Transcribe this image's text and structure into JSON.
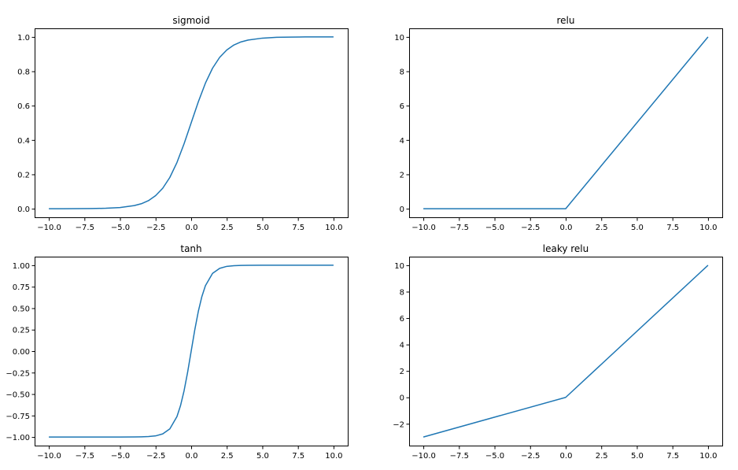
{
  "chart_data": [
    {
      "type": "line",
      "title": "sigmoid",
      "xlabel": "",
      "ylabel": "",
      "xlim": [
        -11,
        11
      ],
      "ylim": [
        -0.05,
        1.05
      ],
      "xticks": [
        -10.0,
        -7.5,
        -5.0,
        -2.5,
        0.0,
        2.5,
        5.0,
        7.5,
        10.0
      ],
      "xtick_labels": [
        "−10.0",
        "−7.5",
        "−5.0",
        "−2.5",
        "0.0",
        "2.5",
        "5.0",
        "7.5",
        "10.0"
      ],
      "yticks": [
        0.0,
        0.2,
        0.4,
        0.6,
        0.8,
        1.0
      ],
      "ytick_labels": [
        "0.0",
        "0.2",
        "0.4",
        "0.6",
        "0.8",
        "1.0"
      ],
      "grid": false,
      "color": "#1f77b4",
      "series": [
        {
          "x": [
            -10,
            -9,
            -8,
            -7,
            -6,
            -5,
            -4,
            -3.5,
            -3,
            -2.5,
            -2,
            -1.5,
            -1,
            -0.5,
            0,
            0.5,
            1,
            1.5,
            2,
            2.5,
            3,
            3.5,
            4,
            5,
            6,
            7,
            8,
            9,
            10
          ],
          "y": [
            0.0,
            0.0001,
            0.0003,
            0.0009,
            0.0025,
            0.0067,
            0.018,
            0.029,
            0.047,
            0.076,
            0.119,
            0.182,
            0.269,
            0.378,
            0.5,
            0.622,
            0.731,
            0.818,
            0.881,
            0.924,
            0.953,
            0.971,
            0.982,
            0.993,
            0.998,
            0.999,
            1.0,
            1.0,
            1.0
          ]
        }
      ]
    },
    {
      "type": "line",
      "title": "relu",
      "xlabel": "",
      "ylabel": "",
      "xlim": [
        -11,
        11
      ],
      "ylim": [
        -0.5,
        10.5
      ],
      "xticks": [
        -10.0,
        -7.5,
        -5.0,
        -2.5,
        0.0,
        2.5,
        5.0,
        7.5,
        10.0
      ],
      "xtick_labels": [
        "−10.0",
        "−7.5",
        "−5.0",
        "−2.5",
        "0.0",
        "2.5",
        "5.0",
        "7.5",
        "10.0"
      ],
      "yticks": [
        0,
        2,
        4,
        6,
        8,
        10
      ],
      "ytick_labels": [
        "0",
        "2",
        "4",
        "6",
        "8",
        "10"
      ],
      "grid": false,
      "color": "#1f77b4",
      "series": [
        {
          "x": [
            -10,
            0,
            10
          ],
          "y": [
            0,
            0,
            10
          ]
        }
      ]
    },
    {
      "type": "line",
      "title": "tanh",
      "xlabel": "",
      "ylabel": "",
      "xlim": [
        -11,
        11
      ],
      "ylim": [
        -1.1,
        1.1
      ],
      "xticks": [
        -10.0,
        -7.5,
        -5.0,
        -2.5,
        0.0,
        2.5,
        5.0,
        7.5,
        10.0
      ],
      "xtick_labels": [
        "−10.0",
        "−7.5",
        "−5.0",
        "−2.5",
        "0.0",
        "2.5",
        "5.0",
        "7.5",
        "10.0"
      ],
      "yticks": [
        -1.0,
        -0.75,
        -0.5,
        -0.25,
        0.0,
        0.25,
        0.5,
        0.75,
        1.0
      ],
      "ytick_labels": [
        "−1.00",
        "−0.75",
        "−0.50",
        "−0.25",
        "0.00",
        "0.25",
        "0.50",
        "0.75",
        "1.00"
      ],
      "grid": false,
      "color": "#1f77b4",
      "series": [
        {
          "x": [
            -10,
            -5,
            -4,
            -3.5,
            -3,
            -2.5,
            -2,
            -1.5,
            -1,
            -0.75,
            -0.5,
            -0.25,
            0,
            0.25,
            0.5,
            0.75,
            1,
            1.5,
            2,
            2.5,
            3,
            3.5,
            4,
            5,
            10
          ],
          "y": [
            -1.0,
            -0.9999,
            -0.9993,
            -0.998,
            -0.995,
            -0.987,
            -0.964,
            -0.905,
            -0.762,
            -0.635,
            -0.462,
            -0.245,
            0.0,
            0.245,
            0.462,
            0.635,
            0.762,
            0.905,
            0.964,
            0.987,
            0.995,
            0.998,
            0.9993,
            0.9999,
            1.0
          ]
        }
      ]
    },
    {
      "type": "line",
      "title": "leaky relu",
      "xlabel": "",
      "ylabel": "",
      "xlim": [
        -11,
        11
      ],
      "ylim": [
        -3.65,
        10.65
      ],
      "xticks": [
        -10.0,
        -7.5,
        -5.0,
        -2.5,
        0.0,
        2.5,
        5.0,
        7.5,
        10.0
      ],
      "xtick_labels": [
        "−10.0",
        "−7.5",
        "−5.0",
        "−2.5",
        "0.0",
        "2.5",
        "5.0",
        "7.5",
        "10.0"
      ],
      "yticks": [
        -2,
        0,
        2,
        4,
        6,
        8,
        10
      ],
      "ytick_labels": [
        "−2",
        "0",
        "2",
        "4",
        "6",
        "8",
        "10"
      ],
      "grid": false,
      "color": "#1f77b4",
      "series": [
        {
          "x": [
            -10,
            0,
            10
          ],
          "y": [
            -3,
            0,
            10
          ]
        }
      ]
    }
  ]
}
